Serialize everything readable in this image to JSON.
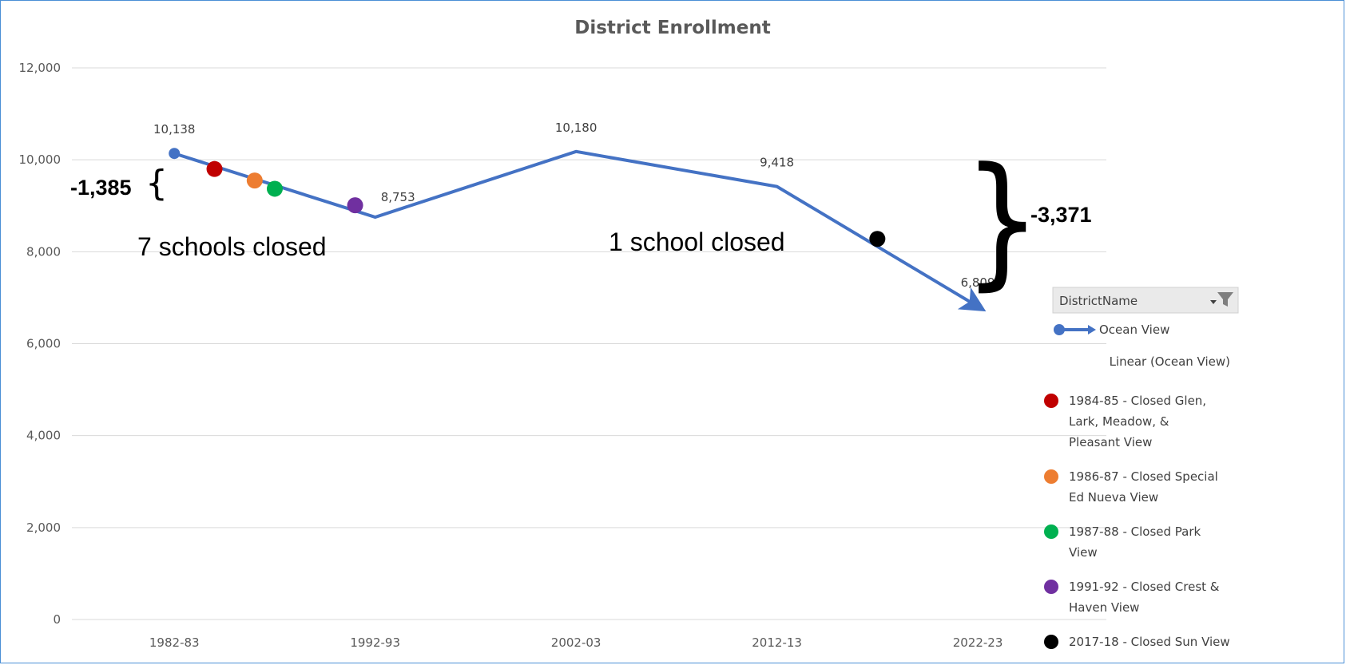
{
  "chart_data": {
    "type": "line",
    "title": "District Enrollment",
    "xlabel": "",
    "ylabel": "",
    "ylim": [
      0,
      12000
    ],
    "yticks": [
      "0",
      "2,000",
      "4,000",
      "6,000",
      "8,000",
      "10,000",
      "12,000"
    ],
    "x_tick_labels": [
      "1982-83",
      "1992-93",
      "2002-03",
      "2012-13",
      "2022-23"
    ],
    "grid": true,
    "legend_position": "right",
    "series": [
      {
        "name": "Ocean View",
        "color": "#4472c4",
        "points": [
          {
            "x": 1982,
            "y": 10138,
            "label": "10,138"
          },
          {
            "x": 1992,
            "y": 8753,
            "label": "8,753"
          },
          {
            "x": 2002,
            "y": 10180,
            "label": "10,180"
          },
          {
            "x": 2012,
            "y": 9418,
            "label": "9,418"
          },
          {
            "x": 2022,
            "y": 6809,
            "label": "6,809"
          }
        ]
      }
    ],
    "closure_markers": [
      {
        "x": 1984,
        "y": 9800,
        "color": "#c00000"
      },
      {
        "x": 1986,
        "y": 9550,
        "color": "#ed7d31"
      },
      {
        "x": 1987,
        "y": 9370,
        "color": "#00b050"
      },
      {
        "x": 1991,
        "y": 9010,
        "color": "#7030a0"
      },
      {
        "x": 2017,
        "y": 8280,
        "color": "#000000"
      }
    ],
    "annotations": {
      "left_change": "-1,385",
      "right_change": "-3,371",
      "left_note": "7 schools closed",
      "right_note": "1 school closed"
    },
    "legend": {
      "header": "DistrictName",
      "entries": [
        {
          "lines": [
            "Ocean View"
          ],
          "kind": "arrow",
          "color": "#4472c4"
        },
        {
          "lines": [
            "Linear (Ocean View)"
          ],
          "kind": "none",
          "color": ""
        },
        {
          "lines": [
            "1984-85 - Closed Glen,",
            "Lark, Meadow, &",
            "Pleasant View"
          ],
          "kind": "dot",
          "color": "#c00000"
        },
        {
          "lines": [
            "1986-87 - Closed Special",
            "Ed Nueva View"
          ],
          "kind": "dot",
          "color": "#ed7d31"
        },
        {
          "lines": [
            "1987-88 - Closed Park",
            "View"
          ],
          "kind": "dot",
          "color": "#00b050"
        },
        {
          "lines": [
            "1991-92 - Closed Crest &",
            "Haven View"
          ],
          "kind": "dot",
          "color": "#7030a0"
        },
        {
          "lines": [
            "2017-18 - Closed Sun View"
          ],
          "kind": "dot",
          "color": "#000000"
        }
      ]
    }
  }
}
